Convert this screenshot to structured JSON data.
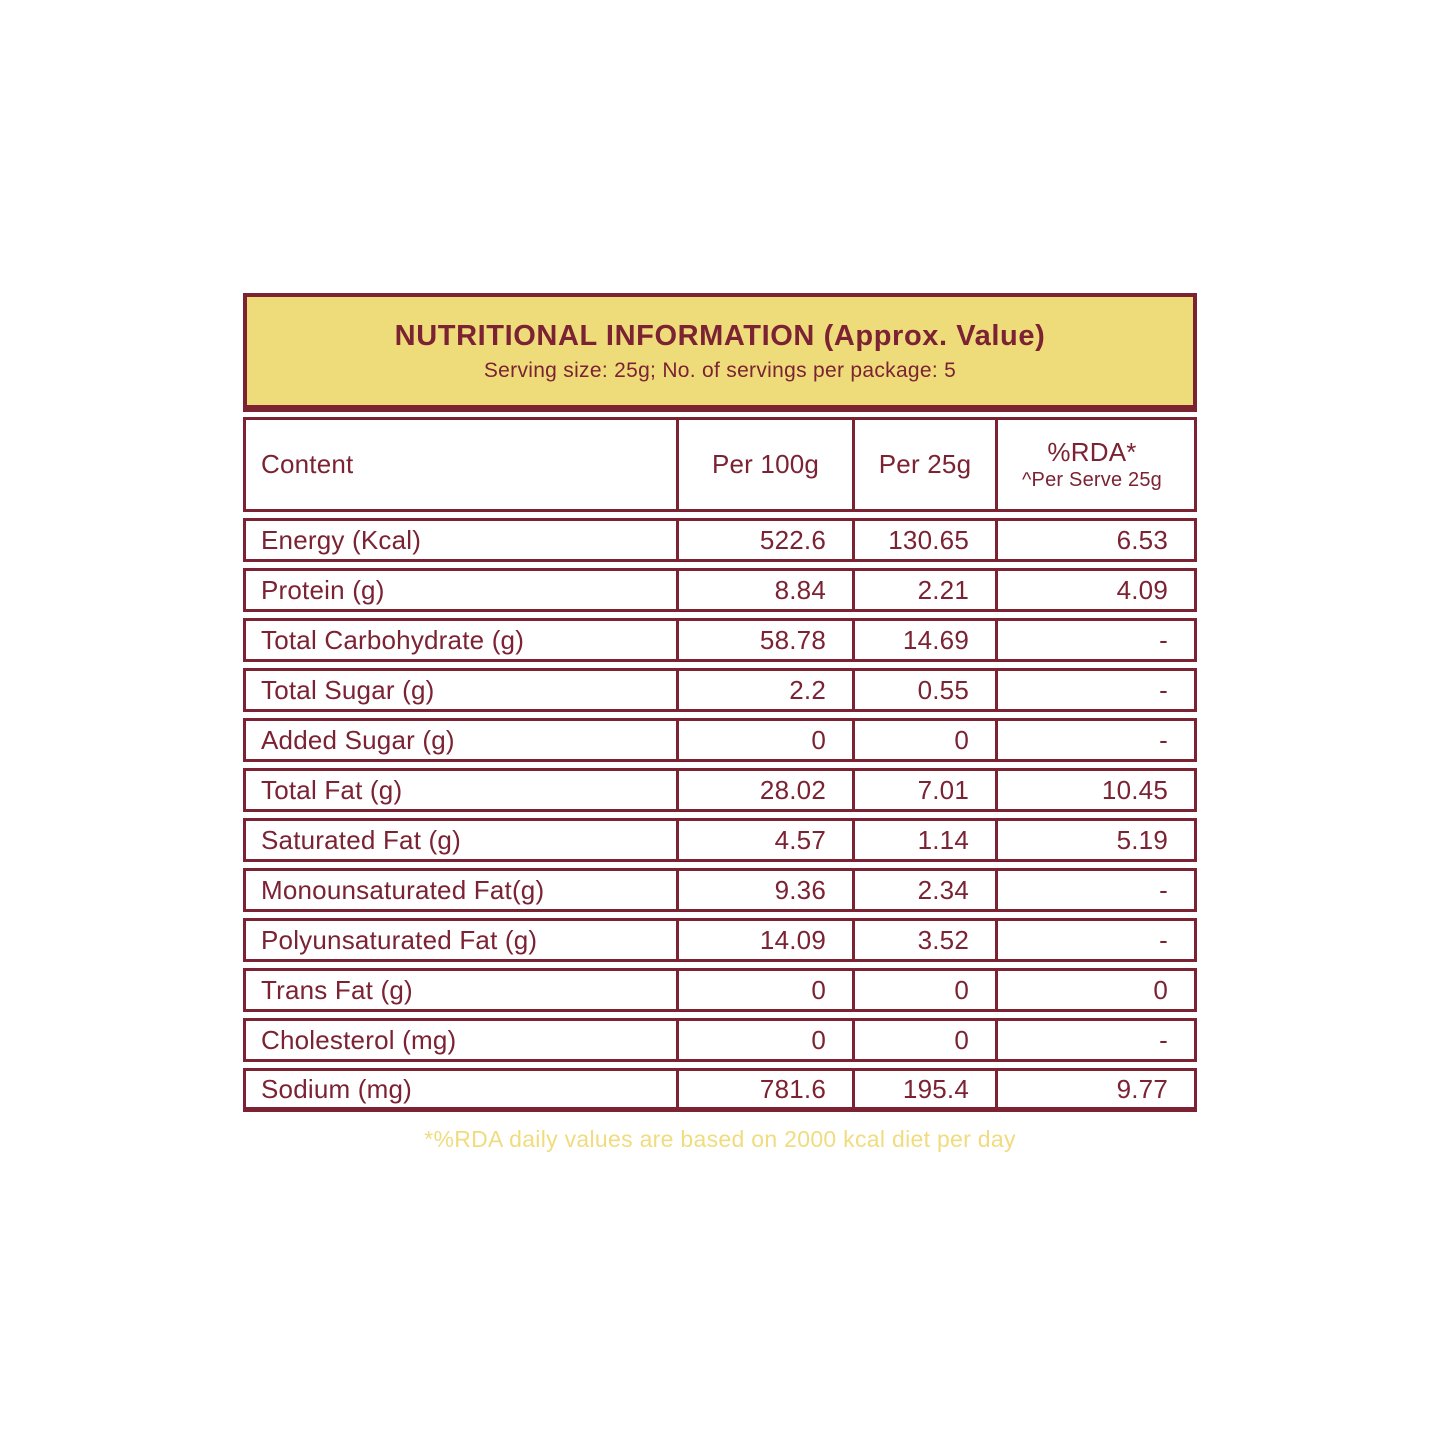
{
  "colors": {
    "maroon": "#7B2233",
    "gold_bg": "#EEDC7B",
    "note_gold": "#F0DC7E"
  },
  "header": {
    "title": "NUTRITIONAL INFORMATION (Approx. Value)",
    "subtitle": "Serving size: 25g; No. of servings per package: 5"
  },
  "table": {
    "columns": {
      "content": "Content",
      "per_100g": "Per 100g",
      "per_25g": "Per 25g",
      "rda_line1": "%RDA*",
      "rda_line2": "^Per Serve 25g"
    },
    "rows": [
      {
        "label": "Energy (Kcal)",
        "per100": "522.6",
        "per25": "130.65",
        "rda": "6.53"
      },
      {
        "label": "Protein (g)",
        "per100": "8.84",
        "per25": "2.21",
        "rda": "4.09"
      },
      {
        "label": "Total Carbohydrate (g)",
        "per100": "58.78",
        "per25": "14.69",
        "rda": "-"
      },
      {
        "label": "Total Sugar (g)",
        "per100": "2.2",
        "per25": "0.55",
        "rda": "-"
      },
      {
        "label": "Added Sugar (g)",
        "per100": "0",
        "per25": "0",
        "rda": "-"
      },
      {
        "label": "Total Fat (g)",
        "per100": "28.02",
        "per25": "7.01",
        "rda": "10.45"
      },
      {
        "label": "Saturated Fat (g)",
        "per100": "4.57",
        "per25": "1.14",
        "rda": "5.19"
      },
      {
        "label": "Monounsaturated Fat(g)",
        "per100": "9.36",
        "per25": "2.34",
        "rda": "-"
      },
      {
        "label": "Polyunsaturated Fat (g)",
        "per100": "14.09",
        "per25": "3.52",
        "rda": "-"
      },
      {
        "label": "Trans Fat (g)",
        "per100": "0",
        "per25": "0",
        "rda": "0"
      },
      {
        "label": "Cholesterol (mg)",
        "per100": "0",
        "per25": "0",
        "rda": "-"
      },
      {
        "label": "Sodium (mg)",
        "per100": "781.6",
        "per25": "195.4",
        "rda": "9.77"
      }
    ]
  },
  "footer": {
    "note": "*%RDA daily values are based on 2000 kcal diet per day"
  }
}
